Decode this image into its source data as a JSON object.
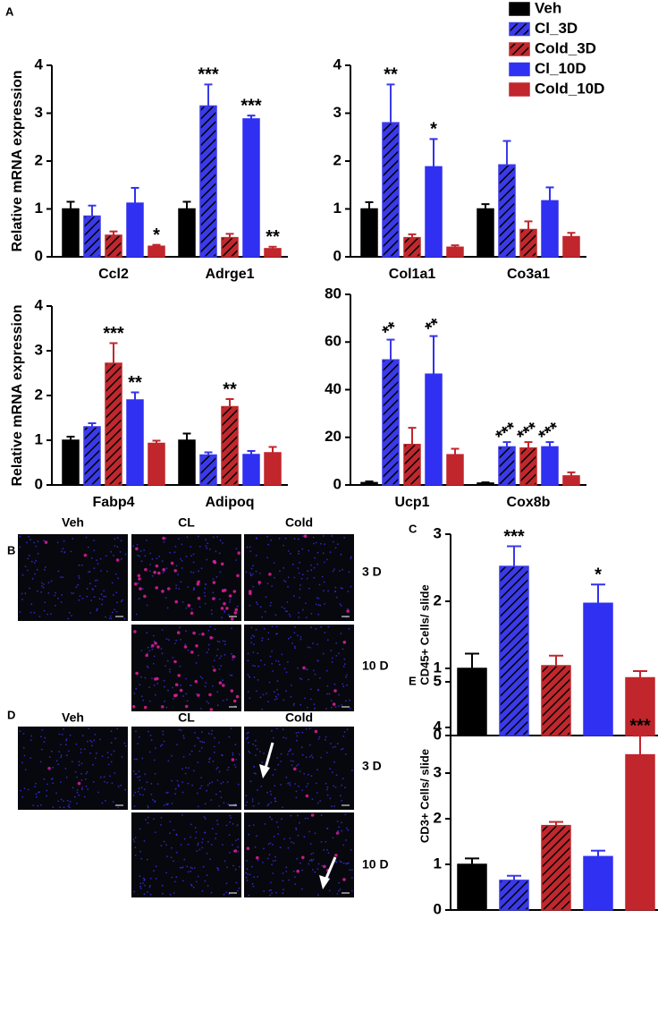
{
  "chart_data": [
    {
      "type": "bar",
      "panel": "A",
      "ylabel": "Relative mRNA expression",
      "categories": [
        "Ccl2",
        "Adrge1"
      ],
      "ylim": [
        0,
        4
      ],
      "yticks": [
        0,
        1,
        2,
        3,
        4
      ],
      "series": [
        {
          "name": "Veh",
          "color": "#000000",
          "hatch": false,
          "values": [
            1.0,
            1.0
          ],
          "errors": [
            0.15,
            0.15
          ],
          "annotations": [
            null,
            null
          ]
        },
        {
          "name": "Cl_3D",
          "color": "#3a3ae8",
          "hatch": true,
          "values": [
            0.85,
            3.15
          ],
          "errors": [
            0.22,
            0.45
          ],
          "annotations": [
            null,
            "***"
          ]
        },
        {
          "name": "Cold_3D",
          "color": "#c0282d",
          "hatch": true,
          "values": [
            0.45,
            0.4
          ],
          "errors": [
            0.08,
            0.08
          ],
          "annotations": [
            null,
            null
          ]
        },
        {
          "name": "Cl_10D",
          "color": "#3030f2",
          "hatch": false,
          "values": [
            1.12,
            2.88
          ],
          "errors": [
            0.32,
            0.07
          ],
          "annotations": [
            null,
            "***"
          ]
        },
        {
          "name": "Cold_10D",
          "color": "#c0262c",
          "hatch": false,
          "values": [
            0.22,
            0.17
          ],
          "errors": [
            0.03,
            0.04
          ],
          "annotations": [
            "*",
            "**"
          ]
        }
      ]
    },
    {
      "type": "bar",
      "categories": [
        "Col1a1",
        "Co3a1"
      ],
      "ylim": [
        0,
        4
      ],
      "yticks": [
        0,
        1,
        2,
        3,
        4
      ],
      "series": [
        {
          "values": [
            1.0,
            1.0
          ],
          "errors": [
            0.14,
            0.1
          ],
          "annotations": [
            null,
            null
          ]
        },
        {
          "values": [
            2.8,
            1.92
          ],
          "errors": [
            0.8,
            0.5
          ],
          "annotations": [
            "**",
            null
          ]
        },
        {
          "values": [
            0.4,
            0.57
          ],
          "errors": [
            0.07,
            0.17
          ],
          "annotations": [
            null,
            null
          ]
        },
        {
          "values": [
            1.88,
            1.17
          ],
          "errors": [
            0.58,
            0.28
          ],
          "annotations": [
            "*",
            null
          ]
        },
        {
          "values": [
            0.2,
            0.42
          ],
          "errors": [
            0.04,
            0.08
          ],
          "annotations": [
            null,
            null
          ]
        }
      ]
    },
    {
      "type": "bar",
      "ylabel": "Relative mRNA expression",
      "categories": [
        "Fabp4",
        "Adipoq"
      ],
      "ylim": [
        0,
        4
      ],
      "yticks": [
        0,
        1,
        2,
        3,
        4
      ],
      "series": [
        {
          "values": [
            1.0,
            1.0
          ],
          "errors": [
            0.08,
            0.15
          ],
          "annotations": [
            null,
            null
          ]
        },
        {
          "values": [
            1.3,
            0.67
          ],
          "errors": [
            0.08,
            0.06
          ],
          "annotations": [
            null,
            null
          ]
        },
        {
          "values": [
            2.72,
            1.75
          ],
          "errors": [
            0.45,
            0.17
          ],
          "annotations": [
            "***",
            "**"
          ]
        },
        {
          "values": [
            1.9,
            0.68
          ],
          "errors": [
            0.17,
            0.08
          ],
          "annotations": [
            "**",
            null
          ]
        },
        {
          "values": [
            0.93,
            0.72
          ],
          "errors": [
            0.06,
            0.13
          ],
          "annotations": [
            null,
            null
          ]
        }
      ]
    },
    {
      "type": "bar",
      "categories": [
        "Ucp1",
        "Cox8b"
      ],
      "ylim": [
        0,
        80
      ],
      "yticks": [
        0,
        20,
        40,
        60,
        80
      ],
      "series": [
        {
          "values": [
            1,
            0.8
          ],
          "errors": [
            0.5,
            0.3
          ],
          "annotations": [
            null,
            null
          ]
        },
        {
          "values": [
            52.5,
            16
          ],
          "errors": [
            8.5,
            2
          ],
          "annotations": [
            "**",
            "***"
          ]
        },
        {
          "values": [
            17,
            15.5
          ],
          "errors": [
            7,
            2.5
          ],
          "annotations": [
            null,
            "***"
          ]
        },
        {
          "values": [
            46.5,
            16
          ],
          "errors": [
            16,
            2
          ],
          "annotations": [
            "**",
            "***"
          ]
        },
        {
          "values": [
            12.7,
            3.8
          ],
          "errors": [
            2.5,
            1.5
          ],
          "annotations": [
            null,
            null
          ]
        }
      ]
    },
    {
      "type": "bar",
      "panel": "C",
      "ylabel": "CD45+ Cells/ slide",
      "categories": [
        null
      ],
      "ylim": [
        0,
        3
      ],
      "yticks": [
        0,
        1,
        2,
        3
      ],
      "series": [
        {
          "values": [
            1.0
          ],
          "errors": [
            0.22
          ],
          "annotations": [
            null
          ]
        },
        {
          "values": [
            2.52
          ],
          "errors": [
            0.3
          ],
          "annotations": [
            "***"
          ]
        },
        {
          "values": [
            1.04
          ],
          "errors": [
            0.15
          ],
          "annotations": [
            null
          ]
        },
        {
          "values": [
            1.97
          ],
          "errors": [
            0.28
          ],
          "annotations": [
            "*"
          ]
        },
        {
          "values": [
            0.86
          ],
          "errors": [
            0.1
          ],
          "annotations": [
            null
          ]
        }
      ]
    },
    {
      "type": "bar",
      "panel": "E",
      "ylabel": "CD3+ Cells/ slide",
      "categories": [
        null
      ],
      "ylim": [
        0,
        5
      ],
      "yticks": [
        0,
        1,
        2,
        3,
        4,
        5
      ],
      "series": [
        {
          "values": [
            1.0
          ],
          "errors": [
            0.13
          ],
          "annotations": [
            null
          ]
        },
        {
          "values": [
            0.65
          ],
          "errors": [
            0.1
          ],
          "annotations": [
            null
          ]
        },
        {
          "values": [
            1.85
          ],
          "errors": [
            0.08
          ],
          "annotations": [
            null
          ]
        },
        {
          "values": [
            1.17
          ],
          "errors": [
            0.13
          ],
          "annotations": [
            null
          ]
        },
        {
          "values": [
            3.4
          ],
          "errors": [
            0.42
          ],
          "annotations": [
            "***"
          ]
        }
      ]
    }
  ],
  "image_panels": [
    {
      "panel": "B",
      "columns": [
        "Veh",
        "CL",
        "Cold"
      ],
      "rows": [
        "3 D",
        "10 D"
      ]
    },
    {
      "panel": "D",
      "columns": [
        "Veh",
        "CL",
        "Cold"
      ],
      "rows": [
        "3 D",
        "10 D"
      ]
    }
  ]
}
